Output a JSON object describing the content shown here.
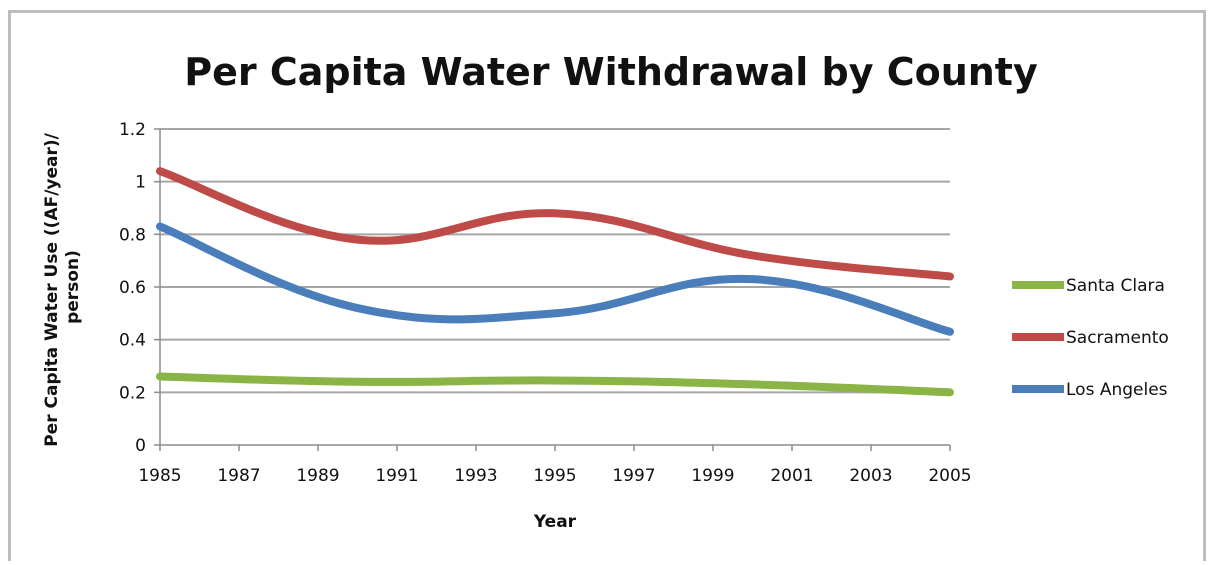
{
  "chart_data": {
    "type": "line",
    "title": "Per Capita Water Withdrawal by County",
    "xlabel": "Year",
    "ylabel": "Per Capita Water Use ((AF/year)/ person)",
    "ylabel_lines": [
      "Per Capita Water Use ((AF/year)/",
      "person)"
    ],
    "x": [
      1985,
      1987,
      1989,
      1991,
      1993,
      1995,
      1997,
      1999,
      2001,
      2003,
      2005
    ],
    "x_tick_labels": [
      "1985",
      "1987",
      "1989",
      "1991",
      "1993",
      "1995",
      "1997",
      "1999",
      "2001",
      "2003",
      "2005"
    ],
    "ylim": [
      0,
      1.2
    ],
    "y_ticks": [
      0,
      0.2,
      0.4,
      0.6,
      0.8,
      1,
      1.2
    ],
    "y_tick_labels": [
      "0",
      "0.2",
      "0.4",
      "0.6",
      "0.8",
      "1",
      "1.2"
    ],
    "grid": true,
    "legend_position": "right",
    "series": [
      {
        "name": "Santa Clara",
        "color": "#8ab446",
        "x": [
          1985,
          1990,
          1995,
          2000,
          2005
        ],
        "values": [
          0.26,
          0.24,
          0.245,
          0.23,
          0.2
        ]
      },
      {
        "name": "Sacramento",
        "color": "#be4b48",
        "x": [
          1985,
          1990,
          1995,
          2000,
          2005
        ],
        "values": [
          1.04,
          0.78,
          0.88,
          0.72,
          0.64
        ]
      },
      {
        "name": "Los Angeles",
        "color": "#4a7ebb",
        "x": [
          1985,
          1990,
          1995,
          2000,
          2005
        ],
        "values": [
          0.83,
          0.52,
          0.5,
          0.63,
          0.43
        ]
      }
    ]
  }
}
